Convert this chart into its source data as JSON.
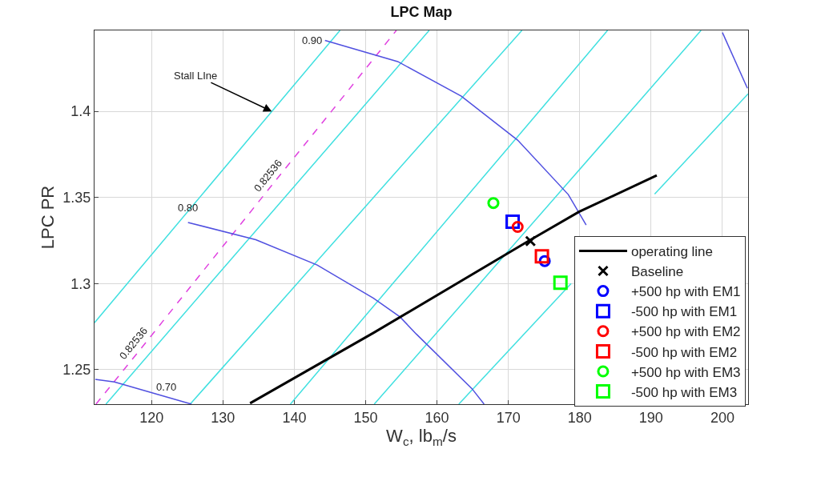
{
  "chart_data": {
    "type": "line",
    "title": "LPC Map",
    "xlabel": "W$_{c}$, lb$_{m}$/s",
    "ylabel": "LPC PR",
    "xlim": [
      112,
      203.6
    ],
    "ylim": [
      1.23,
      1.447
    ],
    "xticks": [
      120,
      130,
      140,
      150,
      160,
      170,
      180,
      190,
      200
    ],
    "yticks": [
      1.25,
      1.3,
      1.35,
      1.4
    ],
    "grid": true,
    "legend": "bottom right",
    "series": [
      {
        "color": "#40e0e0",
        "x": [
          112,
          116.6,
          136.85,
          146.4
        ],
        "values": [
          1.2773,
          1.3,
          1.4,
          1.447
        ]
      },
      {
        "color": "#40e0e0",
        "x": [
          113.6,
          128.2,
          149.1,
          158.9
        ],
        "values": [
          1.23,
          1.3,
          1.4,
          1.447
        ]
      },
      {
        "color": "#40e0e0",
        "x": [
          125.4,
          140.4,
          161.8,
          171.9
        ],
        "values": [
          1.23,
          1.3,
          1.4,
          1.447
        ]
      },
      {
        "color": "#40e0e0",
        "x": [
          139.45,
          153.8,
          174.3,
          183.9
        ],
        "values": [
          1.23,
          1.3,
          1.4,
          1.447
        ]
      },
      {
        "color": "#40e0e0",
        "x": [
          151.2,
          166.0,
          187.1,
          197.0
        ],
        "values": [
          1.23,
          1.3,
          1.4,
          1.447
        ]
      },
      {
        "color": "#40e0e0",
        "x": [
          163.05,
          178.8,
          179.5,
          190.5,
          201.3,
          203.6
        ],
        "values": [
          1.23,
          1.3,
          null,
          1.352,
          1.4,
          1.4102
        ]
      },
      {
        "color": "#e040e0",
        "line_style": "dashed",
        "x": [
          112.2,
          118.5,
          125.8,
          137.3,
          145.2,
          154.3
        ],
        "values": [
          1.23,
          1.2622,
          1.3,
          1.3594,
          1.4,
          1.447
        ]
      },
      {
        "color": "#5050e0",
        "x": [
          112.1,
          114.8,
          122,
          125.6
        ],
        "values": [
          1.2444,
          1.2429,
          1.2343,
          1.23
        ]
      },
      {
        "color": "#5050e0",
        "x": [
          125.1,
          134.6,
          143.2,
          151.1,
          154.8,
          157.1,
          164.9,
          166.6
        ],
        "values": [
          1.3355,
          1.3255,
          1.3108,
          1.2915,
          1.2807,
          1.2707,
          1.239,
          1.23
        ]
      },
      {
        "color": "#5050e0",
        "x": [
          144.3,
          154.5,
          163.4,
          171.3,
          178.4,
          180.9
        ],
        "values": [
          1.4412,
          1.4289,
          1.4088,
          1.3833,
          1.3517,
          1.334
        ]
      },
      {
        "color": "#5050e0",
        "x": [
          200,
          203.5
        ],
        "values": [
          1.4458,
          1.4134
        ]
      },
      {
        "name": "operating line",
        "color": "#000000",
        "x": [
          133.8,
          151.1,
          172.8,
          179.9,
          190.8
        ],
        "values": [
          1.2305,
          1.2714,
          1.3247,
          1.3417,
          1.3628
        ]
      },
      {
        "name": "Baseline",
        "color": "#000000",
        "type": "scatter",
        "marker": "cross",
        "x": [
          173.1
        ],
        "values": [
          1.3247
        ]
      },
      {
        "name": "+500 hp with EM1",
        "color": "#0000ff",
        "type": "scatter",
        "marker": "circle",
        "x": [
          175.1
        ],
        "values": [
          1.3131
        ]
      },
      {
        "name": "-500 hp with EM1",
        "color": "#0000ff",
        "type": "scatter",
        "marker": "square",
        "x": [
          170.6
        ],
        "values": [
          1.336
        ]
      },
      {
        "name": "+500 hp with EM2",
        "color": "#ff0000",
        "type": "scatter",
        "marker": "circle",
        "x": [
          171.3
        ],
        "values": [
          1.3329
        ]
      },
      {
        "name": "-500 hp with EM2",
        "color": "#ff0000",
        "type": "scatter",
        "marker": "square",
        "x": [
          174.7
        ],
        "values": [
          1.3159
        ]
      },
      {
        "name": "+500 hp with EM3",
        "color": "#00ff00",
        "type": "scatter",
        "marker": "circle",
        "x": [
          167.9
        ],
        "values": [
          1.3468
        ]
      },
      {
        "name": "-500 hp with EM3",
        "color": "#00ff00",
        "type": "scatter",
        "marker": "square",
        "x": [
          177.3
        ],
        "values": [
          1.3005
        ]
      }
    ],
    "annotations": [
      {
        "text": "0.90",
        "x": 144.3,
        "y": 1.4412
      },
      {
        "text": "0.80",
        "x": 125.1,
        "y": 1.3355
      },
      {
        "text": "0.70",
        "x": 122,
        "y": 1.2343
      },
      {
        "text": "0.82536",
        "x": 137.3,
        "y": 1.3594
      },
      {
        "text": "0.82536",
        "x": 118.5,
        "y": 1.2622
      },
      {
        "text": "Stall LIne",
        "x": 136.85,
        "y": 1.4
      }
    ]
  }
}
